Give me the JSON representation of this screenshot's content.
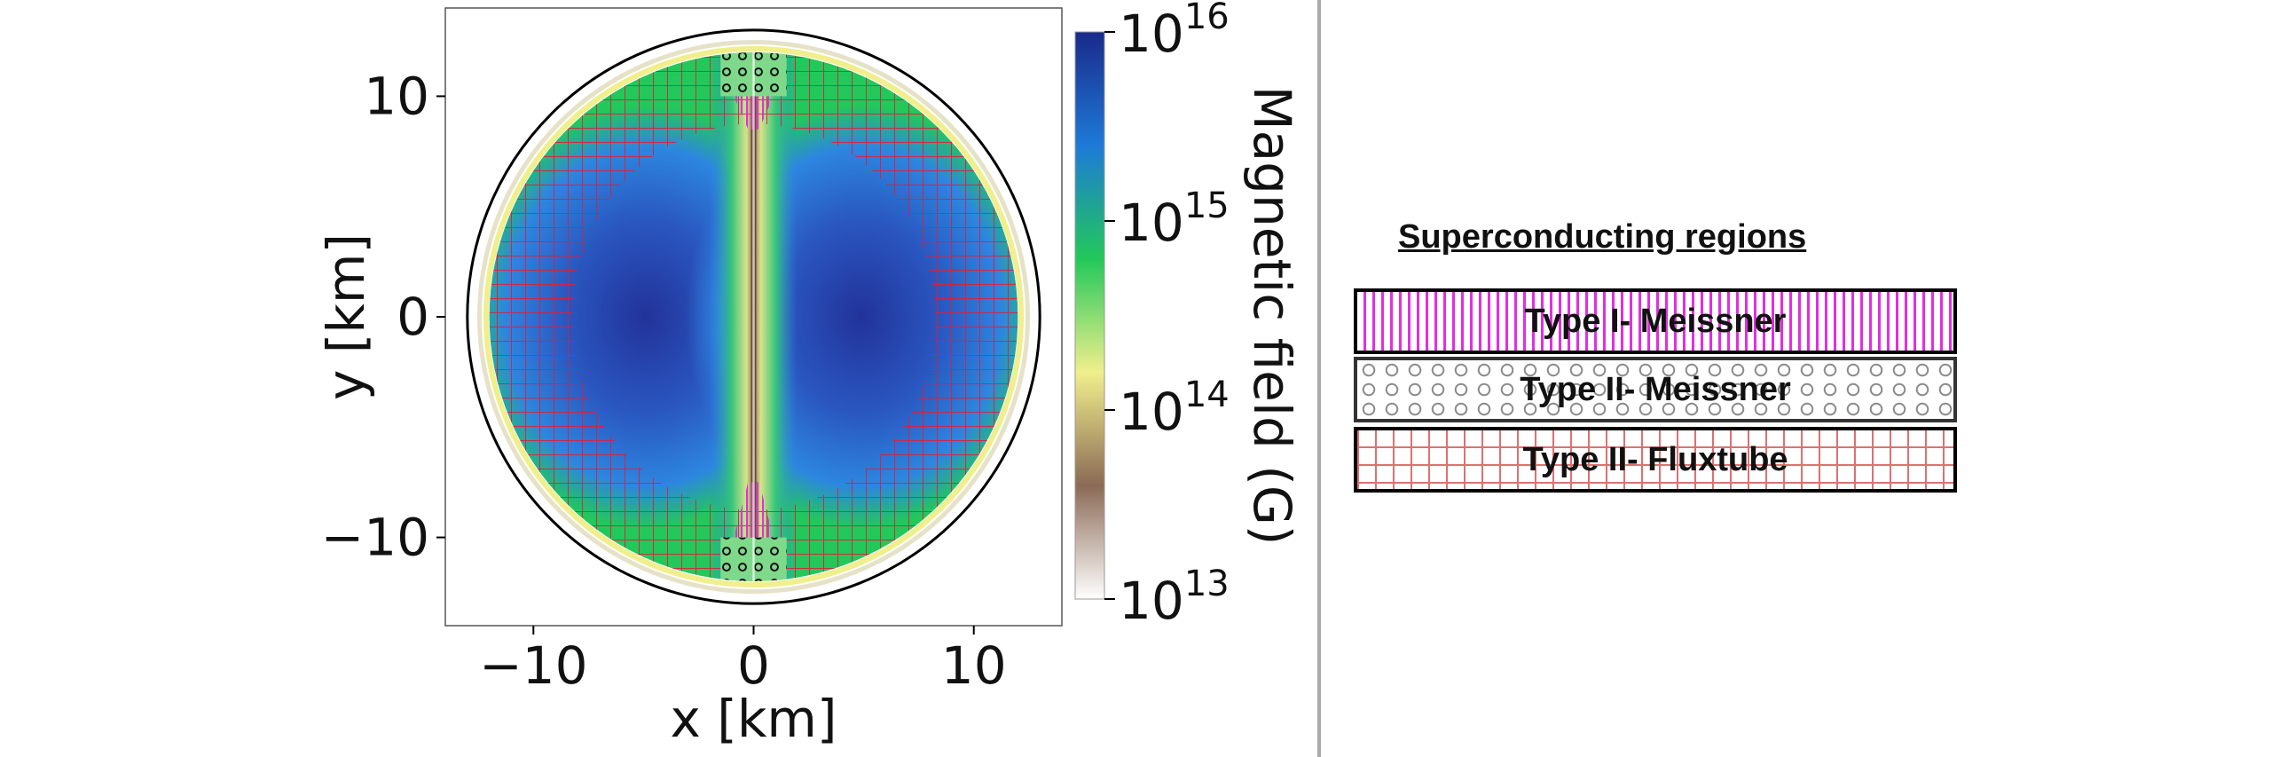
{
  "chart_data": {
    "type": "heatmap",
    "description_text": "",
    "xlabel": "x [km]",
    "ylabel": "y [km]",
    "xlim": [
      -14,
      14
    ],
    "ylim": [
      -14,
      14
    ],
    "x_ticks": [
      -10,
      0,
      10
    ],
    "y_ticks": [
      -10,
      0,
      10
    ],
    "x_tick_labels": [
      "−10",
      "0",
      "10"
    ],
    "y_tick_labels": [
      "−10",
      "0",
      "10"
    ],
    "star_radius_km": 13,
    "core_radius_km": 12,
    "colorbar": {
      "label": "Magnetic field (G)",
      "scale": "log",
      "range": [
        10000000000000.0,
        1e+16
      ],
      "tick_exponents": [
        13,
        14,
        15,
        16
      ],
      "tick_base": "10",
      "colormap": [
        "#ffffff",
        "#8b6a55",
        "#f0ef8c",
        "#22c85a",
        "#1e7ad8",
        "#1a2a8a"
      ]
    },
    "regions": [
      {
        "name": "Type I- Meissner",
        "y_range_km": [
          7.5,
          10
        ]
      },
      {
        "name": "Type II- Meissner",
        "y_range_km": [
          10,
          12
        ]
      },
      {
        "name": "Type II- Fluxtube",
        "shell_km": [
          8.5,
          12
        ]
      }
    ]
  },
  "legend": {
    "title": "Superconducting regions",
    "items": [
      {
        "label": "Type I- Meissner",
        "color": "#e22ee2"
      },
      {
        "label": "Type II- Meissner",
        "color": "#8a8a8a"
      },
      {
        "label": "Type II- Fluxtube",
        "color": "#e05050"
      }
    ]
  }
}
